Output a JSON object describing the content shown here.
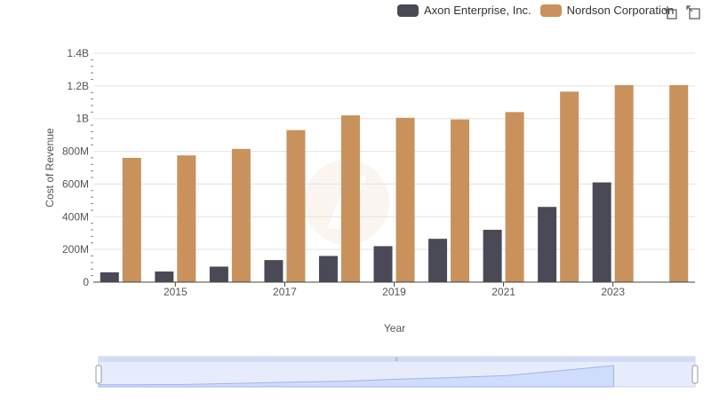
{
  "legend": {
    "items": [
      {
        "label": "Axon Enterprise, Inc.",
        "color": "#4a4a56"
      },
      {
        "label": "Nordson Corporation",
        "color": "#c9915c"
      }
    ]
  },
  "toolbar": {
    "icons": [
      "crosshair-zoom-icon",
      "reset-zoom-icon"
    ]
  },
  "chart_data": {
    "type": "bar",
    "xlabel": "Year",
    "ylabel": "Cost of Revenue",
    "ylim": [
      0,
      1400000000
    ],
    "yticks": [
      {
        "value": 0,
        "label": "0"
      },
      {
        "value": 200000000,
        "label": "200M"
      },
      {
        "value": 400000000,
        "label": "400M"
      },
      {
        "value": 600000000,
        "label": "600M"
      },
      {
        "value": 800000000,
        "label": "800M"
      },
      {
        "value": 1000000000,
        "label": "1B"
      },
      {
        "value": 1200000000,
        "label": "1.2B"
      },
      {
        "value": 1400000000,
        "label": "1.4B"
      }
    ],
    "categories": [
      "2014",
      "2015",
      "2016",
      "2017",
      "2018",
      "2019",
      "2020",
      "2021",
      "2022",
      "2023",
      "2024"
    ],
    "xtick_labels": [
      "2015",
      "2017",
      "2019",
      "2021",
      "2023"
    ],
    "series": [
      {
        "name": "Axon Enterprise, Inc.",
        "color": "#4a4a56",
        "values": [
          60000000,
          65000000,
          95000000,
          135000000,
          160000000,
          220000000,
          265000000,
          320000000,
          460000000,
          610000000,
          null
        ]
      },
      {
        "name": "Nordson Corporation",
        "color": "#c9915c",
        "values": [
          760000000,
          775000000,
          815000000,
          930000000,
          1020000000,
          1005000000,
          995000000,
          1040000000,
          1165000000,
          1205000000,
          1205000000
        ]
      }
    ],
    "grid": true,
    "legend_position": "top-right",
    "range_slider": true
  }
}
